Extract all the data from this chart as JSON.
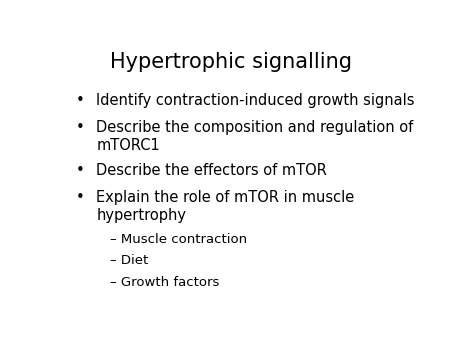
{
  "title": "Hypertrophic signalling",
  "background_color": "#ffffff",
  "title_fontsize": 15,
  "title_color": "#000000",
  "bullet_fontsize": 10.5,
  "sub_bullet_fontsize": 9.5,
  "bullet_color": "#000000",
  "bullet_items": [
    {
      "text": "Identify contraction-induced growth signals",
      "level": 0,
      "wrapped": false
    },
    {
      "text": "Describe the composition and regulation of\nmTORC1",
      "level": 0,
      "wrapped": true
    },
    {
      "text": "Describe the effectors of mTOR",
      "level": 0,
      "wrapped": false
    },
    {
      "text": "Explain the role of mTOR in muscle\nhypertrophy",
      "level": 0,
      "wrapped": true
    },
    {
      "text": "– Muscle contraction",
      "level": 1,
      "wrapped": false
    },
    {
      "text": "– Diet",
      "level": 1,
      "wrapped": false
    },
    {
      "text": "– Growth factors",
      "level": 1,
      "wrapped": false
    }
  ],
  "bullet_symbol": "•",
  "figsize": [
    4.5,
    3.38
  ],
  "dpi": 100
}
